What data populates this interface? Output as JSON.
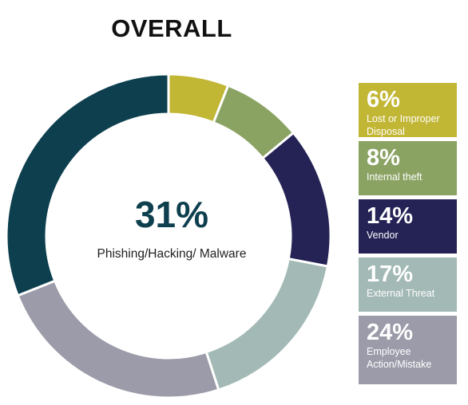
{
  "chart_data": {
    "type": "pie",
    "title": "OVERALL",
    "center": {
      "value": "31%",
      "label": "Phishing/Hacking/ Malware"
    },
    "slices": [
      {
        "label": "Lost or Improper Disposal",
        "value": 6,
        "display": "6%",
        "color": "#c2b635"
      },
      {
        "label": "Internal theft",
        "value": 8,
        "display": "8%",
        "color": "#8aa262"
      },
      {
        "label": "Vendor",
        "value": 14,
        "display": "14%",
        "color": "#252355"
      },
      {
        "label": "External Threat",
        "value": 17,
        "display": "17%",
        "color": "#a2b9b5"
      },
      {
        "label": "Employee Action/Mistake",
        "value": 24,
        "display": "24%",
        "color": "#9b9ba9"
      },
      {
        "label": "Phishing/Hacking/ Malware",
        "value": 31,
        "display": "31%",
        "color": "#0d3f4e"
      }
    ]
  }
}
